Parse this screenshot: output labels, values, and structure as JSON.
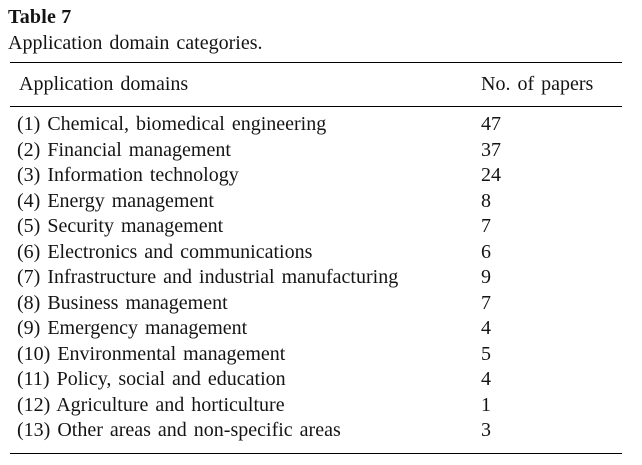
{
  "table": {
    "label": "Table 7",
    "caption": "Application domain categories.",
    "columns": [
      "Application domains",
      "No. of papers"
    ],
    "rows": [
      {
        "domain": "(1) Chemical, biomedical engineering",
        "papers": "47"
      },
      {
        "domain": "(2) Financial management",
        "papers": "37"
      },
      {
        "domain": "(3) Information technology",
        "papers": "24"
      },
      {
        "domain": "(4) Energy management",
        "papers": "8"
      },
      {
        "domain": "(5) Security management",
        "papers": "7"
      },
      {
        "domain": "(6) Electronics and communications",
        "papers": "6"
      },
      {
        "domain": "(7) Infrastructure and industrial manufacturing",
        "papers": "9"
      },
      {
        "domain": "(8) Business management",
        "papers": "7"
      },
      {
        "domain": "(9) Emergency management",
        "papers": "4"
      },
      {
        "domain": "(10) Environmental management",
        "papers": "5"
      },
      {
        "domain": "(11) Policy, social and education",
        "papers": "4"
      },
      {
        "domain": "(12) Agriculture and horticulture",
        "papers": "1"
      },
      {
        "domain": "(13) Other areas and non-specific areas",
        "papers": "3"
      }
    ]
  }
}
